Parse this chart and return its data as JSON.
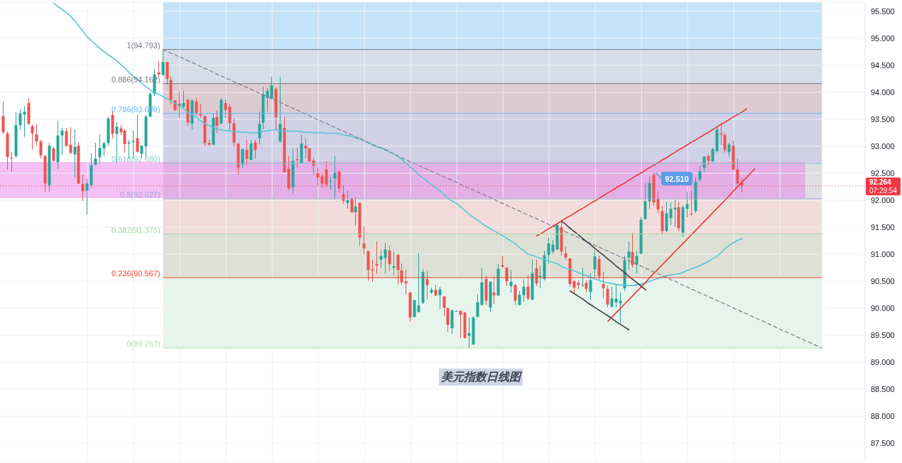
{
  "chart_data": {
    "type": "candlestick",
    "title": "美元指数日线图",
    "categories": [
      null,
      null,
      null,
      null,
      null,
      null,
      null,
      null,
      null,
      null,
      null,
      null,
      null,
      null,
      null,
      null,
      null,
      null,
      null,
      null,
      null,
      null,
      null,
      null,
      null,
      null,
      null,
      null,
      null,
      null,
      null,
      null,
      null,
      null,
      null,
      null,
      null,
      null,
      null,
      null,
      null,
      null,
      null,
      null,
      null,
      null,
      null,
      null,
      null,
      null,
      null,
      null,
      null,
      null,
      null,
      null,
      null,
      null,
      null,
      null,
      null,
      null,
      null,
      null,
      null,
      null,
      null,
      null,
      null,
      null,
      null,
      null,
      null,
      null,
      null,
      null,
      null,
      null,
      null,
      null,
      null,
      null,
      null,
      null,
      null,
      null,
      null,
      null,
      null,
      null,
      null,
      null,
      null,
      null,
      null,
      null,
      null,
      null,
      null,
      null,
      null,
      null,
      null,
      null,
      null,
      null,
      null,
      null,
      null,
      null,
      null,
      null,
      null,
      null,
      null,
      null,
      null,
      null,
      null,
      null,
      null,
      null,
      null,
      null,
      null,
      null,
      null,
      null,
      null,
      null,
      null,
      null,
      null,
      null,
      null,
      null,
      null,
      null,
      null,
      null,
      null,
      null,
      null,
      null,
      null,
      null,
      null,
      null,
      null,
      null,
      null,
      null,
      null,
      null,
      null,
      null,
      null,
      null,
      null,
      null,
      null,
      null,
      null,
      null,
      null,
      null,
      null,
      null,
      null,
      null,
      null,
      null,
      null,
      null,
      null,
      null,
      null,
      null,
      null,
      null,
      null,
      null,
      null,
      null,
      null,
      null,
      null,
      null,
      null,
      null,
      null,
      null,
      null,
      null,
      null,
      null
    ],
    "ohlc": [
      [
        93.56,
        93.83,
        93.22,
        93.26
      ],
      [
        93.24,
        93.28,
        92.56,
        92.8
      ],
      [
        92.79,
        92.9,
        92.52,
        92.78
      ],
      [
        92.82,
        93.63,
        92.79,
        93.39
      ],
      [
        93.39,
        93.69,
        93.3,
        93.61
      ],
      [
        93.59,
        93.74,
        93.17,
        93.64
      ],
      [
        93.8,
        93.9,
        93.39,
        93.42
      ],
      [
        93.37,
        93.41,
        92.93,
        93.24
      ],
      [
        93.22,
        93.41,
        93.01,
        93.09
      ],
      [
        93.09,
        93.12,
        92.77,
        92.83
      ],
      [
        92.82,
        92.84,
        92.14,
        92.31
      ],
      [
        92.28,
        93.06,
        92.16,
        93.01
      ],
      [
        92.96,
        92.99,
        92.71,
        92.73
      ],
      [
        92.71,
        93.47,
        92.58,
        93.2
      ],
      [
        93.2,
        93.34,
        92.84,
        93.29
      ],
      [
        93.28,
        93.34,
        92.99,
        93.01
      ],
      [
        93.03,
        93.36,
        92.86,
        92.88
      ],
      [
        92.85,
        93.32,
        92.42,
        92.99
      ],
      [
        93.01,
        93.08,
        92.3,
        92.31
      ],
      [
        92.3,
        92.47,
        91.99,
        92.17
      ],
      [
        92.18,
        92.4,
        91.74,
        92.31
      ],
      [
        92.28,
        92.87,
        92.22,
        92.65
      ],
      [
        92.66,
        93.07,
        92.65,
        92.77
      ],
      [
        92.8,
        93.23,
        92.69,
        92.97
      ],
      [
        92.96,
        93.08,
        92.82,
        93.06
      ],
      [
        93.06,
        93.54,
        93.01,
        93.52
      ],
      [
        93.58,
        93.66,
        93.15,
        93.23
      ],
      [
        93.23,
        93.45,
        92.69,
        93.36
      ],
      [
        93.33,
        93.39,
        93.21,
        93.26
      ],
      [
        93.29,
        93.32,
        92.88,
        93.04
      ],
      [
        93.05,
        93.12,
        92.77,
        93.07
      ],
      [
        93.08,
        93.29,
        92.77,
        93.1
      ],
      [
        93.15,
        93.59,
        92.88,
        92.9
      ],
      [
        92.86,
        93.02,
        92.78,
        93.01
      ],
      [
        93.0,
        93.58,
        92.78,
        93.55
      ],
      [
        93.55,
        94.0,
        93.54,
        93.97
      ],
      [
        93.97,
        94.43,
        93.94,
        94.33
      ],
      [
        94.37,
        94.58,
        94.29,
        94.33
      ],
      [
        94.32,
        94.793,
        94.31,
        94.56
      ],
      [
        94.56,
        94.57,
        94.15,
        94.25
      ],
      [
        94.23,
        94.3,
        93.78,
        93.86
      ],
      [
        93.85,
        93.86,
        93.66,
        93.67
      ],
      [
        93.79,
        94.01,
        93.52,
        93.74
      ],
      [
        93.73,
        94.03,
        93.72,
        93.8
      ],
      [
        93.86,
        93.88,
        93.38,
        93.44
      ],
      [
        93.42,
        93.87,
        93.32,
        93.85
      ],
      [
        93.83,
        93.9,
        93.56,
        93.61
      ],
      [
        93.6,
        93.77,
        93.52,
        93.57
      ],
      [
        93.56,
        93.57,
        93.0,
        93.06
      ],
      [
        93.06,
        93.12,
        93.0,
        93.03
      ],
      [
        93.03,
        93.61,
        93.02,
        93.53
      ],
      [
        93.54,
        93.67,
        93.25,
        93.38
      ],
      [
        93.42,
        93.9,
        93.41,
        93.86
      ],
      [
        93.8,
        93.87,
        93.52,
        93.67
      ],
      [
        93.73,
        93.77,
        93.29,
        93.43
      ],
      [
        93.42,
        93.51,
        92.99,
        93.07
      ],
      [
        93.05,
        93.06,
        92.48,
        92.61
      ],
      [
        92.66,
        92.96,
        92.61,
        92.95
      ],
      [
        92.93,
        93.12,
        92.66,
        92.77
      ],
      [
        92.75,
        93.12,
        92.74,
        93.05
      ],
      [
        93.07,
        93.12,
        92.77,
        92.93
      ],
      [
        93.15,
        93.65,
        93.04,
        93.41
      ],
      [
        93.44,
        94.11,
        93.32,
        93.96
      ],
      [
        93.9,
        94.08,
        93.64,
        94.03
      ],
      [
        93.88,
        94.29,
        93.87,
        94.13
      ],
      [
        94.06,
        94.09,
        93.29,
        93.54
      ],
      [
        93.09,
        94.29,
        93.08,
        93.41
      ],
      [
        93.34,
        93.54,
        92.51,
        92.52
      ],
      [
        92.58,
        92.82,
        92.18,
        92.22
      ],
      [
        92.24,
        92.96,
        92.13,
        92.73
      ],
      [
        92.76,
        92.97,
        92.61,
        92.74
      ],
      [
        92.69,
        93.21,
        92.68,
        93.05
      ],
      [
        93.01,
        93.14,
        92.77,
        92.96
      ],
      [
        92.96,
        92.97,
        92.71,
        92.72
      ],
      [
        92.74,
        92.79,
        92.47,
        92.64
      ],
      [
        92.5,
        92.61,
        92.27,
        92.42
      ],
      [
        92.44,
        92.51,
        92.22,
        92.31
      ],
      [
        92.57,
        92.72,
        92.25,
        92.29
      ],
      [
        92.35,
        92.44,
        92.2,
        92.36
      ],
      [
        92.4,
        92.81,
        92.01,
        92.51
      ],
      [
        92.53,
        92.55,
        92.14,
        92.22
      ],
      [
        92.11,
        92.27,
        91.93,
        91.99
      ],
      [
        91.95,
        92.17,
        91.84,
        92.0
      ],
      [
        92.03,
        92.05,
        91.76,
        91.78
      ],
      [
        91.78,
        92.05,
        91.53,
        91.88
      ],
      [
        91.95,
        91.96,
        91.16,
        91.31
      ],
      [
        91.2,
        91.51,
        91.0,
        91.11
      ],
      [
        91.06,
        91.07,
        90.52,
        90.71
      ],
      [
        90.72,
        90.89,
        90.49,
        90.7
      ],
      [
        90.82,
        91.24,
        90.63,
        90.79
      ],
      [
        90.9,
        91.08,
        90.75,
        90.97
      ],
      [
        90.93,
        91.21,
        90.64,
        91.09
      ],
      [
        91.07,
        91.16,
        90.68,
        90.82
      ],
      [
        90.75,
        91.05,
        90.61,
        90.78
      ],
      [
        90.99,
        91.0,
        90.43,
        90.71
      ],
      [
        90.7,
        90.83,
        90.43,
        90.48
      ],
      [
        90.5,
        90.71,
        90.27,
        90.46
      ],
      [
        90.29,
        90.3,
        89.75,
        89.83
      ],
      [
        89.84,
        90.16,
        89.83,
        90.15
      ],
      [
        89.93,
        91.03,
        89.92,
        90.05
      ],
      [
        90.1,
        90.72,
        90.08,
        90.67
      ],
      [
        90.54,
        90.68,
        90.16,
        90.43
      ],
      [
        90.29,
        90.38,
        90.27,
        90.34
      ],
      [
        90.34,
        90.43,
        90.23,
        90.24
      ],
      [
        90.24,
        90.4,
        89.99,
        90.35
      ],
      [
        90.22,
        90.23,
        89.86,
        90.01
      ],
      [
        90.0,
        90.01,
        89.57,
        89.69
      ],
      [
        89.63,
        89.97,
        89.53,
        89.96
      ],
      [
        89.94,
        89.96,
        89.94,
        89.95
      ],
      [
        89.95,
        89.96,
        89.45,
        89.88
      ],
      [
        89.92,
        89.93,
        89.44,
        89.45
      ],
      [
        89.49,
        89.83,
        89.262,
        89.54
      ],
      [
        89.33,
        89.85,
        89.32,
        89.83
      ],
      [
        89.84,
        90.27,
        89.83,
        90.11
      ],
      [
        90.06,
        90.75,
        90.05,
        90.48
      ],
      [
        90.54,
        90.6,
        90.05,
        90.14
      ],
      [
        90.01,
        90.5,
        89.94,
        90.49
      ],
      [
        90.29,
        90.59,
        90.08,
        90.24
      ],
      [
        90.24,
        90.82,
        90.23,
        90.73
      ],
      [
        90.8,
        90.96,
        90.75,
        90.77
      ],
      [
        90.75,
        90.76,
        90.41,
        90.5
      ],
      [
        90.41,
        90.71,
        90.29,
        90.49
      ],
      [
        90.43,
        90.45,
        90.05,
        90.14
      ],
      [
        90.06,
        90.32,
        90.05,
        90.25
      ],
      [
        90.24,
        90.54,
        90.12,
        90.4
      ],
      [
        90.4,
        90.62,
        90.14,
        90.18
      ],
      [
        90.16,
        90.89,
        90.15,
        90.65
      ],
      [
        90.74,
        90.89,
        90.41,
        90.46
      ],
      [
        90.58,
        90.79,
        90.37,
        90.6
      ],
      [
        90.54,
        91.06,
        90.52,
        90.98
      ],
      [
        90.99,
        91.3,
        90.81,
        91.2
      ],
      [
        91.05,
        91.26,
        91.02,
        91.18
      ],
      [
        91.09,
        91.58,
        91.08,
        91.54
      ],
      [
        91.5,
        91.63,
        90.97,
        91.05
      ],
      [
        91.02,
        91.15,
        90.89,
        90.94
      ],
      [
        90.92,
        90.93,
        90.4,
        90.45
      ],
      [
        90.5,
        90.53,
        90.27,
        90.38
      ],
      [
        90.47,
        90.51,
        90.36,
        90.43
      ],
      [
        90.42,
        90.75,
        90.4,
        90.43
      ],
      [
        90.47,
        90.51,
        90.29,
        90.36
      ],
      [
        90.3,
        90.65,
        90.16,
        90.52
      ],
      [
        90.72,
        91.07,
        90.58,
        90.96
      ],
      [
        90.91,
        90.97,
        90.53,
        90.59
      ],
      [
        90.45,
        90.67,
        90.18,
        90.37
      ],
      [
        90.36,
        90.42,
        90.02,
        90.07
      ],
      [
        90.03,
        90.4,
        90.02,
        90.18
      ],
      [
        90.11,
        90.43,
        90.01,
        90.18
      ],
      [
        90.09,
        90.29,
        89.72,
        90.14
      ],
      [
        90.37,
        90.97,
        90.32,
        90.89
      ],
      [
        90.94,
        91.24,
        90.71,
        91.05
      ],
      [
        91.04,
        91.39,
        90.75,
        90.8
      ],
      [
        90.81,
        91.06,
        90.65,
        90.97
      ],
      [
        91.01,
        91.68,
        91.0,
        91.64
      ],
      [
        91.65,
        92.32,
        91.64,
        91.98
      ],
      [
        91.98,
        92.44,
        91.84,
        92.32
      ],
      [
        92.47,
        92.51,
        91.9,
        91.96
      ],
      [
        92.03,
        92.17,
        91.77,
        91.83
      ],
      [
        91.8,
        91.89,
        91.38,
        91.43
      ],
      [
        91.43,
        91.97,
        91.41,
        91.76
      ],
      [
        91.67,
        91.96,
        91.54,
        91.84
      ],
      [
        91.83,
        92.02,
        91.5,
        91.86
      ],
      [
        91.87,
        91.98,
        91.43,
        91.48
      ],
      [
        91.4,
        91.91,
        91.32,
        91.87
      ],
      [
        91.84,
        92.16,
        91.69,
        91.93
      ],
      [
        91.75,
        92.17,
        91.71,
        91.74
      ],
      [
        91.8,
        92.44,
        91.76,
        92.34
      ],
      [
        92.38,
        92.64,
        92.34,
        92.54
      ],
      [
        92.6,
        92.82,
        92.53,
        92.81
      ],
      [
        92.82,
        92.86,
        92.64,
        92.73
      ],
      [
        92.72,
        92.97,
        92.71,
        92.95
      ],
      [
        92.91,
        93.35,
        92.88,
        93.31
      ],
      [
        93.24,
        93.41,
        93.03,
        93.22
      ],
      [
        93.21,
        93.25,
        92.88,
        92.93
      ],
      [
        92.89,
        93.07,
        92.82,
        93.03
      ],
      [
        93.01,
        93.1,
        92.55,
        92.57
      ],
      [
        92.57,
        92.78,
        92.29,
        92.31
      ],
      [
        92.33,
        92.42,
        92.14,
        92.264
      ],
      null,
      null,
      null,
      null,
      null,
      null,
      null,
      null,
      null,
      null,
      null,
      null,
      null,
      null,
      null,
      null,
      null,
      null,
      null
    ],
    "series": [
      {
        "type": "line",
        "color": "#56c5d6",
        "line_style": "solid",
        "values": [
          null,
          null,
          null,
          null,
          null,
          null,
          null,
          null,
          null,
          null,
          null,
          null,
          95.65,
          95.59,
          95.53,
          95.47,
          95.41,
          95.32,
          95.22,
          95.12,
          95.02,
          94.95,
          94.88,
          94.81,
          94.75,
          94.69,
          94.64,
          94.58,
          94.51,
          94.44,
          94.36,
          94.29,
          94.23,
          94.16,
          94.1,
          94.04,
          93.99,
          93.96,
          93.92,
          93.88,
          93.84,
          93.79,
          93.75,
          93.69,
          93.63,
          93.58,
          93.53,
          93.47,
          93.42,
          93.38,
          93.35,
          93.32,
          93.3,
          93.29,
          93.28,
          93.27,
          93.27,
          93.26,
          93.26,
          93.25,
          93.25,
          93.27,
          93.28,
          93.29,
          93.3,
          93.3,
          93.29,
          93.28,
          93.28,
          93.28,
          93.28,
          93.27,
          93.26,
          93.26,
          93.25,
          93.25,
          93.25,
          93.24,
          93.24,
          93.24,
          93.23,
          93.21,
          93.2,
          93.18,
          93.15,
          93.14,
          93.1,
          93.06,
          93.02,
          92.99,
          92.97,
          92.94,
          92.9,
          92.86,
          92.81,
          92.75,
          92.68,
          92.61,
          92.54,
          92.47,
          92.41,
          92.35,
          92.29,
          92.23,
          92.17,
          92.1,
          92.03,
          91.98,
          91.94,
          91.87,
          91.8,
          91.74,
          91.68,
          91.63,
          91.57,
          91.52,
          91.47,
          91.43,
          91.38,
          91.34,
          91.29,
          91.24,
          91.19,
          91.12,
          91.06,
          91.0,
          90.98,
          90.95,
          90.92,
          90.9,
          90.87,
          90.85,
          90.82,
          90.77,
          90.74,
          90.72,
          90.69,
          90.66,
          90.63,
          90.6,
          90.57,
          90.54,
          90.51,
          90.49,
          90.47,
          90.46,
          90.44,
          90.43,
          90.43,
          90.42,
          90.42,
          90.44,
          90.45,
          90.47,
          90.5,
          90.53,
          90.55,
          90.58,
          90.6,
          90.62,
          90.63,
          90.64,
          90.67,
          90.7,
          90.73,
          90.76,
          90.79,
          90.83,
          90.87,
          90.92,
          90.96,
          91.03,
          91.11,
          91.17,
          91.22,
          91.26,
          91.29,
          null,
          null,
          null,
          null,
          null,
          null,
          null,
          null,
          null,
          null,
          null,
          null,
          null,
          null,
          null,
          null,
          null,
          null,
          null
        ]
      },
      {
        "type": "line",
        "color": "#787b86",
        "line_style": "dashed",
        "values": [
          null,
          null,
          null,
          null,
          null,
          null,
          null,
          null,
          null,
          null,
          null,
          null,
          null,
          null,
          null,
          null,
          null,
          null,
          null,
          null,
          null,
          null,
          null,
          null,
          null,
          null,
          null,
          null,
          null,
          null,
          null,
          null,
          null,
          null,
          null,
          null,
          null,
          null,
          94.79,
          94.76,
          94.72,
          94.69,
          94.65,
          94.62,
          94.58,
          94.55,
          94.51,
          94.48,
          94.44,
          94.41,
          94.37,
          94.33,
          94.3,
          94.26,
          94.23,
          94.19,
          94.16,
          94.12,
          94.09,
          94.05,
          94.02,
          93.98,
          93.95,
          93.91,
          93.88,
          93.84,
          93.81,
          93.77,
          93.74,
          93.7,
          93.67,
          93.63,
          93.6,
          93.56,
          93.52,
          93.49,
          93.45,
          93.42,
          93.38,
          93.35,
          93.31,
          93.28,
          93.24,
          93.21,
          93.17,
          93.14,
          93.1,
          93.07,
          93.03,
          93.0,
          92.96,
          92.93,
          92.89,
          92.86,
          92.82,
          92.78,
          92.75,
          92.71,
          92.68,
          92.64,
          92.61,
          92.57,
          92.54,
          92.5,
          92.47,
          92.43,
          92.4,
          92.36,
          92.33,
          92.29,
          92.26,
          92.22,
          92.19,
          92.15,
          92.12,
          92.08,
          92.05,
          92.01,
          91.97,
          91.94,
          91.9,
          91.87,
          91.83,
          91.8,
          91.76,
          91.73,
          91.69,
          91.66,
          91.62,
          91.59,
          91.55,
          91.52,
          91.48,
          91.45,
          91.41,
          91.38,
          91.34,
          91.31,
          91.27,
          91.23,
          91.2,
          91.16,
          91.13,
          91.09,
          91.06,
          91.02,
          90.99,
          90.95,
          90.92,
          90.88,
          90.85,
          90.81,
          90.78,
          90.74,
          90.71,
          90.67,
          90.64,
          90.6,
          90.57,
          90.53,
          90.5,
          90.46,
          90.42,
          90.39,
          90.35,
          90.32,
          90.28,
          90.25,
          90.21,
          90.18,
          90.14,
          90.11,
          90.07,
          90.04,
          90.0,
          89.97,
          89.93,
          89.9,
          89.86,
          89.83,
          89.79,
          89.76,
          89.72,
          89.69,
          89.65,
          89.61,
          89.58,
          89.54,
          89.51,
          89.47,
          89.44,
          89.4,
          89.37,
          89.33,
          89.3,
          89.26
        ]
      },
      {
        "type": "line",
        "color": "#e53935",
        "line_style": "solid",
        "values": [
          null,
          null,
          null,
          null,
          null,
          null,
          null,
          null,
          null,
          null,
          null,
          null,
          null,
          null,
          null,
          null,
          null,
          null,
          null,
          null,
          null,
          null,
          null,
          null,
          null,
          null,
          null,
          null,
          null,
          null,
          null,
          null,
          null,
          null,
          null,
          null,
          null,
          null,
          null,
          null,
          null,
          null,
          null,
          null,
          null,
          null,
          null,
          null,
          null,
          null,
          null,
          null,
          null,
          null,
          null,
          null,
          null,
          null,
          null,
          null,
          null,
          null,
          null,
          null,
          null,
          null,
          null,
          null,
          null,
          null,
          null,
          null,
          null,
          null,
          null,
          null,
          null,
          null,
          null,
          null,
          null,
          null,
          null,
          null,
          null,
          null,
          null,
          null,
          null,
          null,
          null,
          null,
          null,
          null,
          null,
          null,
          null,
          null,
          null,
          null,
          null,
          null,
          null,
          null,
          null,
          null,
          null,
          null,
          null,
          null,
          null,
          null,
          null,
          null,
          null,
          null,
          null,
          null,
          null,
          null,
          null,
          null,
          null,
          null,
          null,
          null,
          null,
          91.34,
          91.38,
          91.43,
          91.48,
          91.52,
          91.57,
          91.62,
          91.67,
          91.71,
          91.76,
          91.81,
          91.85,
          91.9,
          91.95,
          91.99,
          92.04,
          92.09,
          92.14,
          92.18,
          92.23,
          92.28,
          92.32,
          92.37,
          92.42,
          92.47,
          92.51,
          92.56,
          92.61,
          92.65,
          92.7,
          92.75,
          92.79,
          92.84,
          92.89,
          92.94,
          92.98,
          93.03,
          93.08,
          93.12,
          93.17,
          93.22,
          93.26,
          93.31,
          93.36,
          93.41,
          93.45,
          93.5,
          93.55,
          93.59,
          93.64,
          93.69,
          null,
          null,
          null,
          null,
          null,
          null,
          null,
          null,
          null,
          null,
          null,
          null,
          null,
          null,
          null,
          null,
          null,
          null
        ]
      },
      {
        "type": "line",
        "color": "#e53935",
        "line_style": "solid",
        "values": [
          null,
          null,
          null,
          null,
          null,
          null,
          null,
          null,
          null,
          null,
          null,
          null,
          null,
          null,
          null,
          null,
          null,
          null,
          null,
          null,
          null,
          null,
          null,
          null,
          null,
          null,
          null,
          null,
          null,
          null,
          null,
          null,
          null,
          null,
          null,
          null,
          null,
          null,
          null,
          null,
          null,
          null,
          null,
          null,
          null,
          null,
          null,
          null,
          null,
          null,
          null,
          null,
          null,
          null,
          null,
          null,
          null,
          null,
          null,
          null,
          null,
          null,
          null,
          null,
          null,
          null,
          null,
          null,
          null,
          null,
          null,
          null,
          null,
          null,
          null,
          null,
          null,
          null,
          null,
          null,
          null,
          null,
          null,
          null,
          null,
          null,
          null,
          null,
          null,
          null,
          null,
          null,
          null,
          null,
          null,
          null,
          null,
          null,
          null,
          null,
          null,
          null,
          null,
          null,
          null,
          null,
          null,
          null,
          null,
          null,
          null,
          null,
          null,
          null,
          null,
          null,
          null,
          null,
          null,
          null,
          null,
          null,
          null,
          null,
          null,
          null,
          null,
          null,
          null,
          null,
          null,
          null,
          null,
          null,
          null,
          null,
          null,
          null,
          null,
          null,
          null,
          null,
          null,
          null,
          89.76,
          89.84,
          89.92,
          90.0,
          90.08,
          90.16,
          90.24,
          90.32,
          90.4,
          90.48,
          90.57,
          90.65,
          90.73,
          90.81,
          90.89,
          90.97,
          91.05,
          91.13,
          91.21,
          91.29,
          91.37,
          91.45,
          91.53,
          91.61,
          91.69,
          91.77,
          91.85,
          91.93,
          92.01,
          92.09,
          92.18,
          92.26,
          92.34,
          92.42,
          92.5,
          92.58,
          null,
          null,
          null,
          null,
          null,
          null,
          null,
          null,
          null,
          null,
          null,
          null,
          null,
          null,
          null,
          null
        ]
      },
      {
        "type": "line",
        "color": "#3a3d46",
        "line_style": "solid",
        "values": [
          null,
          null,
          null,
          null,
          null,
          null,
          null,
          null,
          null,
          null,
          null,
          null,
          null,
          null,
          null,
          null,
          null,
          null,
          null,
          null,
          null,
          null,
          null,
          null,
          null,
          null,
          null,
          null,
          null,
          null,
          null,
          null,
          null,
          null,
          null,
          null,
          null,
          null,
          null,
          null,
          null,
          null,
          null,
          null,
          null,
          null,
          null,
          null,
          null,
          null,
          null,
          null,
          null,
          null,
          null,
          null,
          null,
          null,
          null,
          null,
          null,
          null,
          null,
          null,
          null,
          null,
          null,
          null,
          null,
          null,
          null,
          null,
          null,
          null,
          null,
          null,
          null,
          null,
          null,
          null,
          null,
          null,
          null,
          null,
          null,
          null,
          null,
          null,
          null,
          null,
          null,
          null,
          null,
          null,
          null,
          null,
          null,
          null,
          null,
          null,
          null,
          null,
          null,
          null,
          null,
          null,
          null,
          null,
          null,
          null,
          null,
          null,
          null,
          null,
          null,
          null,
          null,
          null,
          null,
          null,
          null,
          null,
          null,
          null,
          null,
          null,
          null,
          null,
          null,
          null,
          null,
          null,
          null,
          91.61,
          91.55,
          91.48,
          91.42,
          91.36,
          91.29,
          91.23,
          91.17,
          91.1,
          91.04,
          90.98,
          90.91,
          90.85,
          90.78,
          90.72,
          90.66,
          90.59,
          90.53,
          90.47,
          90.4,
          90.34,
          null,
          null,
          null,
          null,
          null,
          null,
          null,
          null,
          null,
          null,
          null,
          null,
          null,
          null,
          null,
          null,
          null,
          null,
          null,
          null,
          null,
          null,
          null,
          null,
          null,
          null,
          null,
          null,
          null,
          null,
          null,
          null,
          null,
          null,
          null,
          null,
          null,
          null,
          null,
          null,
          null,
          null
        ]
      },
      {
        "type": "line",
        "color": "#3a3d46",
        "line_style": "solid",
        "values": [
          null,
          null,
          null,
          null,
          null,
          null,
          null,
          null,
          null,
          null,
          null,
          null,
          null,
          null,
          null,
          null,
          null,
          null,
          null,
          null,
          null,
          null,
          null,
          null,
          null,
          null,
          null,
          null,
          null,
          null,
          null,
          null,
          null,
          null,
          null,
          null,
          null,
          null,
          null,
          null,
          null,
          null,
          null,
          null,
          null,
          null,
          null,
          null,
          null,
          null,
          null,
          null,
          null,
          null,
          null,
          null,
          null,
          null,
          null,
          null,
          null,
          null,
          null,
          null,
          null,
          null,
          null,
          null,
          null,
          null,
          null,
          null,
          null,
          null,
          null,
          null,
          null,
          null,
          null,
          null,
          null,
          null,
          null,
          null,
          null,
          null,
          null,
          null,
          null,
          null,
          null,
          null,
          null,
          null,
          null,
          null,
          null,
          null,
          null,
          null,
          null,
          null,
          null,
          null,
          null,
          null,
          null,
          null,
          null,
          null,
          null,
          null,
          null,
          null,
          null,
          null,
          null,
          null,
          null,
          null,
          null,
          null,
          null,
          null,
          null,
          null,
          null,
          null,
          null,
          null,
          null,
          null,
          null,
          null,
          null,
          90.32,
          90.27,
          90.22,
          90.17,
          90.11,
          90.06,
          90.01,
          89.96,
          89.91,
          89.86,
          89.81,
          89.75,
          89.7,
          89.65,
          89.6,
          null,
          null,
          null,
          null,
          null,
          null,
          null,
          null,
          null,
          null,
          null,
          null,
          null,
          null,
          null,
          null,
          null,
          null,
          null,
          null,
          null,
          null,
          null,
          null,
          null,
          null,
          null,
          null,
          null,
          null,
          null,
          null,
          null,
          null,
          null,
          null,
          null,
          null,
          null,
          null,
          null,
          null,
          null,
          null,
          null,
          null
        ]
      }
    ],
    "ylim": [
      87.16,
      95.67
    ],
    "yticks": [
      {
        "value": 87.5,
        "label": "87.500"
      },
      {
        "value": 88,
        "label": "88.000"
      },
      {
        "value": 88.5,
        "label": "88.500"
      },
      {
        "value": 89,
        "label": "89.000"
      },
      {
        "value": 89.5,
        "label": "89.500"
      },
      {
        "value": 90,
        "label": "90.000"
      },
      {
        "value": 90.5,
        "label": "90.500"
      },
      {
        "value": 91,
        "label": "91.000"
      },
      {
        "value": 91.5,
        "label": "91.500"
      },
      {
        "value": 92,
        "label": "92.000"
      },
      {
        "value": 92.5,
        "label": "92.500"
      },
      {
        "value": 93,
        "label": "93.000"
      },
      {
        "value": 93.5,
        "label": "93.500"
      },
      {
        "value": 94,
        "label": "94.000"
      },
      {
        "value": 94.5,
        "label": "94.500"
      },
      {
        "value": 95,
        "label": "95.000"
      },
      {
        "value": 95.5,
        "label": "95.500"
      }
    ],
    "grid": true,
    "tick_labels": "y",
    "ref_lines": [
      {
        "axis": "y",
        "value": 94.793,
        "label": "1(94.793)",
        "color": "#787b86"
      },
      {
        "axis": "y",
        "value": 94.162,
        "label": "0.886(94.162)",
        "color": "#787b86"
      },
      {
        "axis": "y",
        "value": 93.609,
        "label": "0.786(93.609)",
        "color": "#64b5f6"
      },
      {
        "axis": "y",
        "value": 92.68,
        "label": "0.618(92.680)",
        "color": "#8fd0c6"
      },
      {
        "axis": "y",
        "value": 92.027,
        "label": "0.5(92.027)",
        "color": "#9fa8da"
      },
      {
        "axis": "y",
        "value": 91.375,
        "label": "0.382(91.375)",
        "color": "#a5d6a7"
      },
      {
        "axis": "y",
        "value": 90.567,
        "label": "0.236(90.567)",
        "color": "#f44336"
      },
      {
        "axis": "y",
        "value": 89.262,
        "label": "0(89.262)",
        "color": "#b5dfb9"
      },
      {
        "axis": "y",
        "value": 92.264,
        "label": "92.264",
        "color": "#f23645",
        "line_style": "dotted"
      }
    ],
    "bands": [
      {
        "axis": "y",
        "from": 94.793,
        "to": 95.67,
        "color": "#8bc7f1"
      },
      {
        "axis": "y",
        "from": 94.162,
        "to": 94.793,
        "color": "#abbbd1"
      },
      {
        "axis": "y",
        "from": 93.609,
        "to": 94.162,
        "color": "#b997a3"
      },
      {
        "axis": "y",
        "from": 92.68,
        "to": 93.609,
        "color": "#a1a1cd"
      },
      {
        "axis": "y",
        "from": 92.027,
        "to": 92.68,
        "color": "#bdbdc5"
      },
      {
        "axis": "y",
        "from": 91.375,
        "to": 92.027,
        "color": "#e3b9b7"
      },
      {
        "axis": "y",
        "from": 90.567,
        "to": 91.375,
        "color": "#bfc1ab"
      },
      {
        "axis": "y",
        "from": 89.262,
        "to": 90.567,
        "color": "#cde9d9"
      },
      {
        "axis": "y",
        "from": 92.04,
        "to": 92.71,
        "color": "#ea80ea"
      }
    ],
    "annotations": [
      "92.510",
      "07:29:54"
    ]
  }
}
